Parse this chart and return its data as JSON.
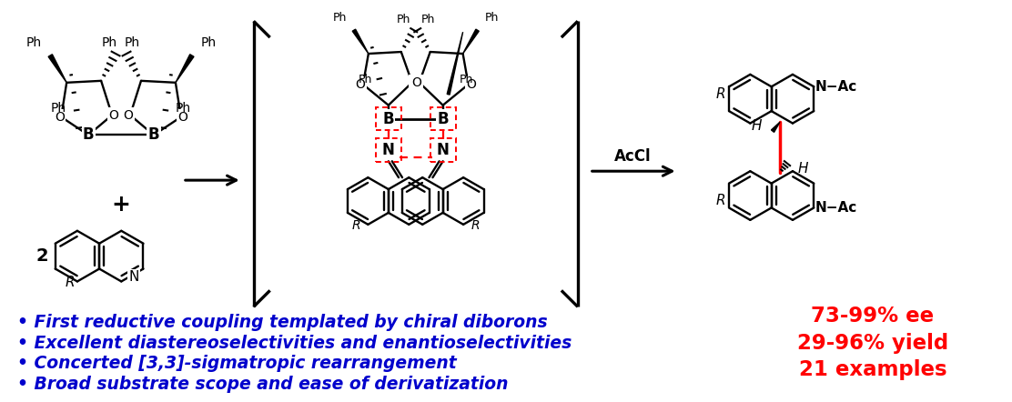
{
  "bullet_points": [
    "• First reductive coupling templated by chiral diborons",
    "• Excellent diastereoselectivities and enantioselectivities",
    "• Concerted [3,3]-sigmatropic rearrangement",
    "• Broad substrate scope and ease of derivatization"
  ],
  "results": [
    "73-99% ee",
    "29-96% yield",
    "21 examples"
  ],
  "bullet_color": "#0000CC",
  "result_color": "#FF0000",
  "background_color": "#FFFFFF",
  "bullet_fontsize": 13.5,
  "result_fontsize": 16.5
}
